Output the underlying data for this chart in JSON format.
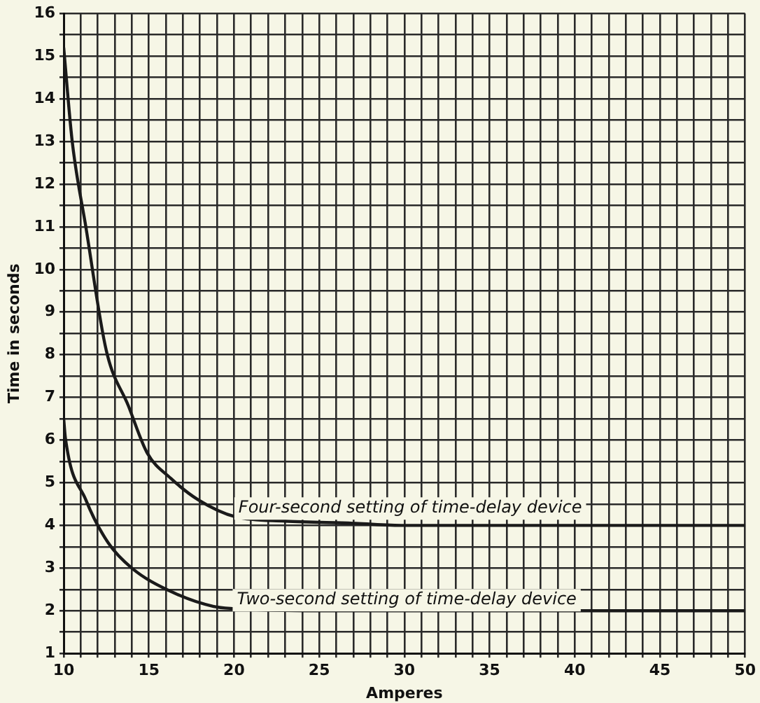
{
  "chart_data": {
    "type": "line",
    "xlabel": "Amperes",
    "ylabel": "Time in seconds",
    "xlim": [
      10,
      50
    ],
    "ylim": [
      1,
      16
    ],
    "xticks": [
      10,
      {
        "value": 11,
        "label": null
      },
      {
        "value": 12,
        "label": null
      },
      {
        "value": 13,
        "label": null
      },
      {
        "value": 14,
        "label": null
      },
      15,
      {
        "value": 16,
        "label": null
      },
      {
        "value": 17,
        "label": null
      },
      {
        "value": 18,
        "label": null
      },
      {
        "value": 19,
        "label": null
      },
      20,
      {
        "value": 21,
        "label": null
      },
      {
        "value": 22,
        "label": null
      },
      {
        "value": 23,
        "label": null
      },
      {
        "value": 24,
        "label": null
      },
      25,
      {
        "value": 26,
        "label": null
      },
      {
        "value": 27,
        "label": null
      },
      {
        "value": 28,
        "label": null
      },
      {
        "value": 29,
        "label": null
      },
      30,
      {
        "value": 31,
        "label": null
      },
      {
        "value": 32,
        "label": null
      },
      {
        "value": 33,
        "label": null
      },
      {
        "value": 34,
        "label": null
      },
      35,
      {
        "value": 36,
        "label": null
      },
      {
        "value": 37,
        "label": null
      },
      {
        "value": 38,
        "label": null
      },
      {
        "value": 39,
        "label": null
      },
      40,
      {
        "value": 41,
        "label": null
      },
      {
        "value": 42,
        "label": null
      },
      {
        "value": 43,
        "label": null
      },
      {
        "value": 44,
        "label": null
      },
      45,
      {
        "value": 46,
        "label": null
      },
      {
        "value": 47,
        "label": null
      },
      {
        "value": 48,
        "label": null
      },
      {
        "value": 49,
        "label": null
      },
      50
    ],
    "yticks": [
      1,
      {
        "value": 1.5,
        "label": null
      },
      2,
      {
        "value": 2.5,
        "label": null
      },
      3,
      {
        "value": 3.5,
        "label": null
      },
      4,
      {
        "value": 4.5,
        "label": null
      },
      5,
      {
        "value": 5.5,
        "label": null
      },
      6,
      {
        "value": 6.5,
        "label": null
      },
      7,
      {
        "value": 7.5,
        "label": null
      },
      8,
      {
        "value": 8.5,
        "label": null
      },
      9,
      {
        "value": 9.5,
        "label": null
      },
      10,
      {
        "value": 10.5,
        "label": null
      },
      11,
      {
        "value": 11.5,
        "label": null
      },
      12,
      {
        "value": 12.5,
        "label": null
      },
      13,
      {
        "value": 13.5,
        "label": null
      },
      14,
      {
        "value": 14.5,
        "label": null
      },
      15,
      {
        "value": 15.5,
        "label": null
      },
      16
    ],
    "grid": true,
    "marker": "none",
    "line_style": "solid",
    "series": [
      {
        "color": "#1a1a1a",
        "x": [
          10,
          10.5,
          11.3,
          12.5,
          13.8,
          14.9,
          16.3,
          17.9,
          20.1,
          23,
          27,
          30,
          40,
          50
        ],
        "values": [
          15.2,
          13,
          11,
          8.1,
          6.8,
          5.7,
          5.1,
          4.6,
          4.2,
          4.1,
          4.05,
          4,
          4,
          4
        ]
      },
      {
        "color": "#1a1a1a",
        "x": [
          10,
          10.1,
          11.3,
          12.6,
          14,
          16.3,
          18.8,
          20,
          25,
          30,
          40,
          50
        ],
        "values": [
          6.5,
          6.05,
          4.6,
          3.6,
          3,
          2.45,
          2.1,
          2.05,
          2,
          2,
          2,
          2
        ]
      }
    ],
    "annotations": [
      {
        "text": "Four-second setting of time-delay device",
        "x": 20.1,
        "y": 4.2
      },
      {
        "text": "Two-second setting of time-delay device",
        "x": 20,
        "y": 2.05
      }
    ]
  }
}
